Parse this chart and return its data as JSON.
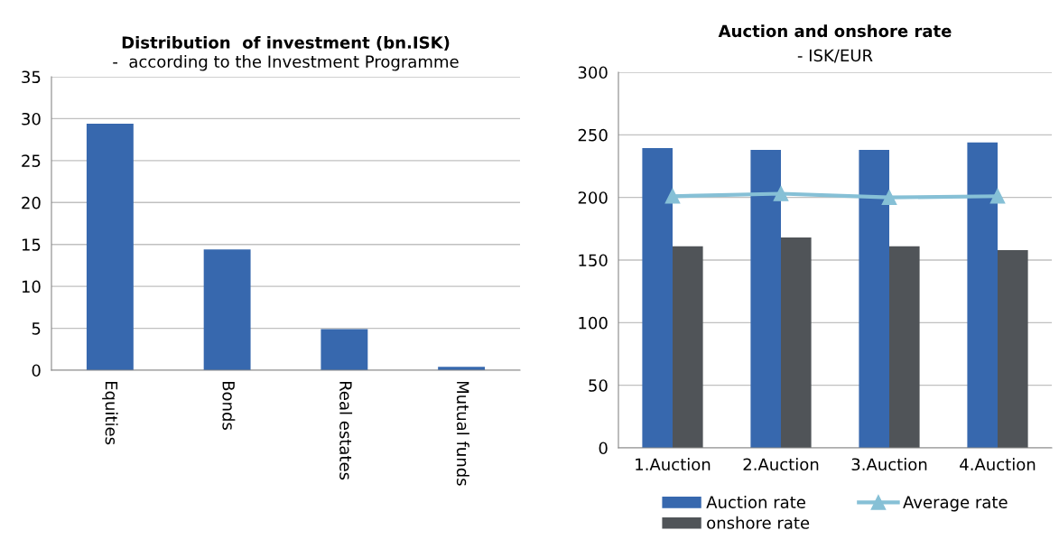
{
  "chart_data": [
    {
      "type": "bar",
      "title": "Distribution  of investment (bn.ISK)",
      "subtitle": "-  according to the Investment Programme",
      "categories": [
        "Equities",
        "Bonds",
        "Real estates",
        "Mutual funds"
      ],
      "values": [
        29.4,
        14.4,
        4.9,
        0.4
      ],
      "color": "#3768ae",
      "ylim": [
        0,
        35
      ],
      "yticks": [
        0,
        5,
        10,
        15,
        20,
        25,
        30,
        35
      ],
      "grid": "y",
      "legend": false
    },
    {
      "type": "bar",
      "title": "Auction and onshore rate",
      "subtitle": "- ISK/EUR",
      "categories": [
        "1.Auction",
        "2.Auction",
        "3.Auction",
        "4.Auction"
      ],
      "ylim": [
        0,
        300
      ],
      "yticks": [
        0,
        50,
        100,
        150,
        200,
        250,
        300
      ],
      "grid": "y",
      "legend": "bottom",
      "series": [
        {
          "name": "Auction rate",
          "color": "#3768ae",
          "values": [
            239.5,
            238,
            238,
            244
          ]
        },
        {
          "name": "onshore rate",
          "color": "#505458",
          "values": [
            161,
            168,
            161,
            158
          ]
        },
        {
          "name": "Average rate",
          "type": "line",
          "color": "#86c0d6",
          "marker": "triangle",
          "values": [
            201,
            203,
            200,
            201
          ]
        }
      ]
    }
  ]
}
